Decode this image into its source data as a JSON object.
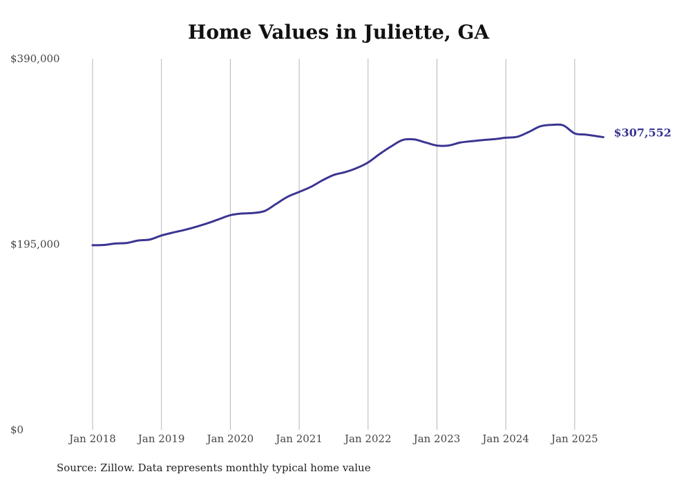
{
  "chart_data": {
    "type": "line",
    "title": "Home Values in Juliette, GA",
    "source_note": "Source: Zillow. Data represents monthly typical home value",
    "ylim": [
      0,
      390000
    ],
    "y_ticks": [
      {
        "value": 0,
        "label": "$0"
      },
      {
        "value": 195000,
        "label": "$195,000"
      },
      {
        "value": 390000,
        "label": "$390,000"
      }
    ],
    "x_ticks": [
      {
        "value": "2018-01",
        "label": "Jan 2018"
      },
      {
        "value": "2019-01",
        "label": "Jan 2019"
      },
      {
        "value": "2020-01",
        "label": "Jan 2020"
      },
      {
        "value": "2021-01",
        "label": "Jan 2021"
      },
      {
        "value": "2022-01",
        "label": "Jan 2022"
      },
      {
        "value": "2023-01",
        "label": "Jan 2023"
      },
      {
        "value": "2024-01",
        "label": "Jan 2024"
      },
      {
        "value": "2025-01",
        "label": "Jan 2025"
      }
    ],
    "xlim": [
      "2018-01",
      "2025-06"
    ],
    "grid": {
      "vertical": true,
      "horizontal": false
    },
    "line_color": "#3a3592",
    "grid_color": "#b5b5b5",
    "end_label": "$307,552",
    "series": [
      {
        "x": [
          "2018-01",
          "2018-03",
          "2018-05",
          "2018-07",
          "2018-09",
          "2018-11",
          "2019-01",
          "2019-03",
          "2019-05",
          "2019-07",
          "2019-09",
          "2019-11",
          "2020-01",
          "2020-03",
          "2020-05",
          "2020-07",
          "2020-09",
          "2020-11",
          "2021-01",
          "2021-03",
          "2021-05",
          "2021-07",
          "2021-09",
          "2021-11",
          "2022-01",
          "2022-03",
          "2022-05",
          "2022-07",
          "2022-09",
          "2022-11",
          "2023-01",
          "2023-03",
          "2023-05",
          "2023-07",
          "2023-09",
          "2023-11",
          "2024-01",
          "2024-03",
          "2024-05",
          "2024-07",
          "2024-09",
          "2024-11",
          "2025-01",
          "2025-03",
          "2025-06"
        ],
        "values": [
          194000,
          194300,
          195800,
          196400,
          199000,
          200000,
          204200,
          207300,
          210000,
          213300,
          217000,
          221300,
          225600,
          227300,
          227800,
          230000,
          237500,
          245000,
          250000,
          255200,
          262000,
          267800,
          270800,
          275000,
          281000,
          289800,
          297800,
          304500,
          305200,
          302000,
          298800,
          298800,
          301800,
          303300,
          304500,
          305500,
          307000,
          308000,
          313000,
          319000,
          320500,
          320000,
          311500,
          310200,
          307552
        ]
      }
    ]
  }
}
